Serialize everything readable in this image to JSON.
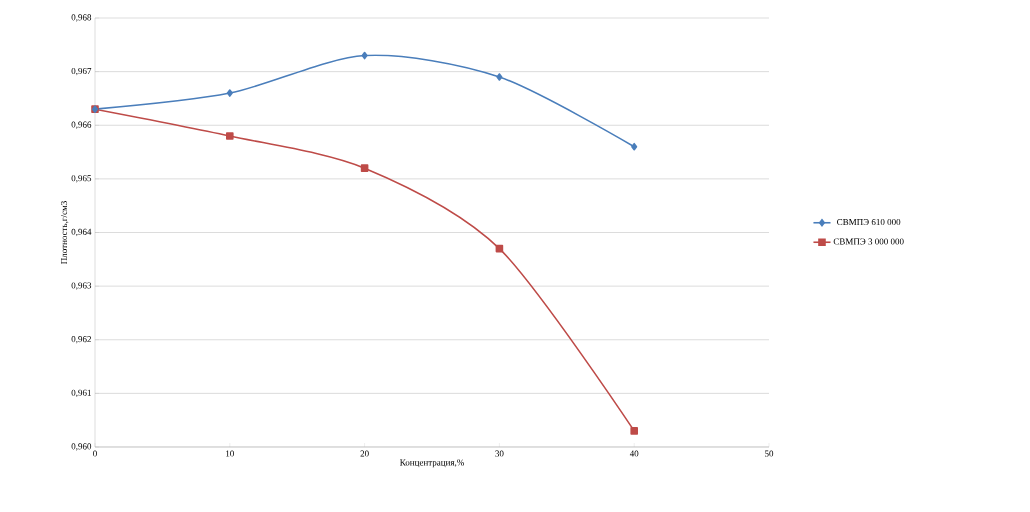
{
  "chart_data": {
    "type": "line",
    "xlabel": "Концентрация,%",
    "ylabel": "Плотность,г/см3",
    "x": [
      0,
      10,
      20,
      30,
      40
    ],
    "series": [
      {
        "name": "СВМПЭ 610 000",
        "color": "#4a7ebb",
        "marker": "diamond",
        "values": [
          0.9663,
          0.9666,
          0.9673,
          0.9669,
          0.9656
        ]
      },
      {
        "name": "СВМПЭ 3 000 000",
        "color": "#be4b48",
        "marker": "square",
        "values": [
          0.9663,
          0.9658,
          0.9652,
          0.9637,
          0.9603
        ]
      }
    ],
    "xlim": [
      0,
      50
    ],
    "xticks": [
      0,
      10,
      20,
      30,
      40,
      50
    ],
    "ylim": [
      0.96,
      0.968
    ],
    "yticks": [
      {
        "value": 0.96,
        "label": "0,960"
      },
      {
        "value": 0.961,
        "label": "0,961"
      },
      {
        "value": 0.962,
        "label": "0,962"
      },
      {
        "value": 0.963,
        "label": "0,963"
      },
      {
        "value": 0.964,
        "label": "0,964"
      },
      {
        "value": 0.965,
        "label": "0,965"
      },
      {
        "value": 0.966,
        "label": "0,966"
      },
      {
        "value": 0.967,
        "label": "0,967"
      },
      {
        "value": 0.968,
        "label": "0,968"
      }
    ],
    "grid": "y",
    "legend": "right",
    "line_style": "solid"
  }
}
